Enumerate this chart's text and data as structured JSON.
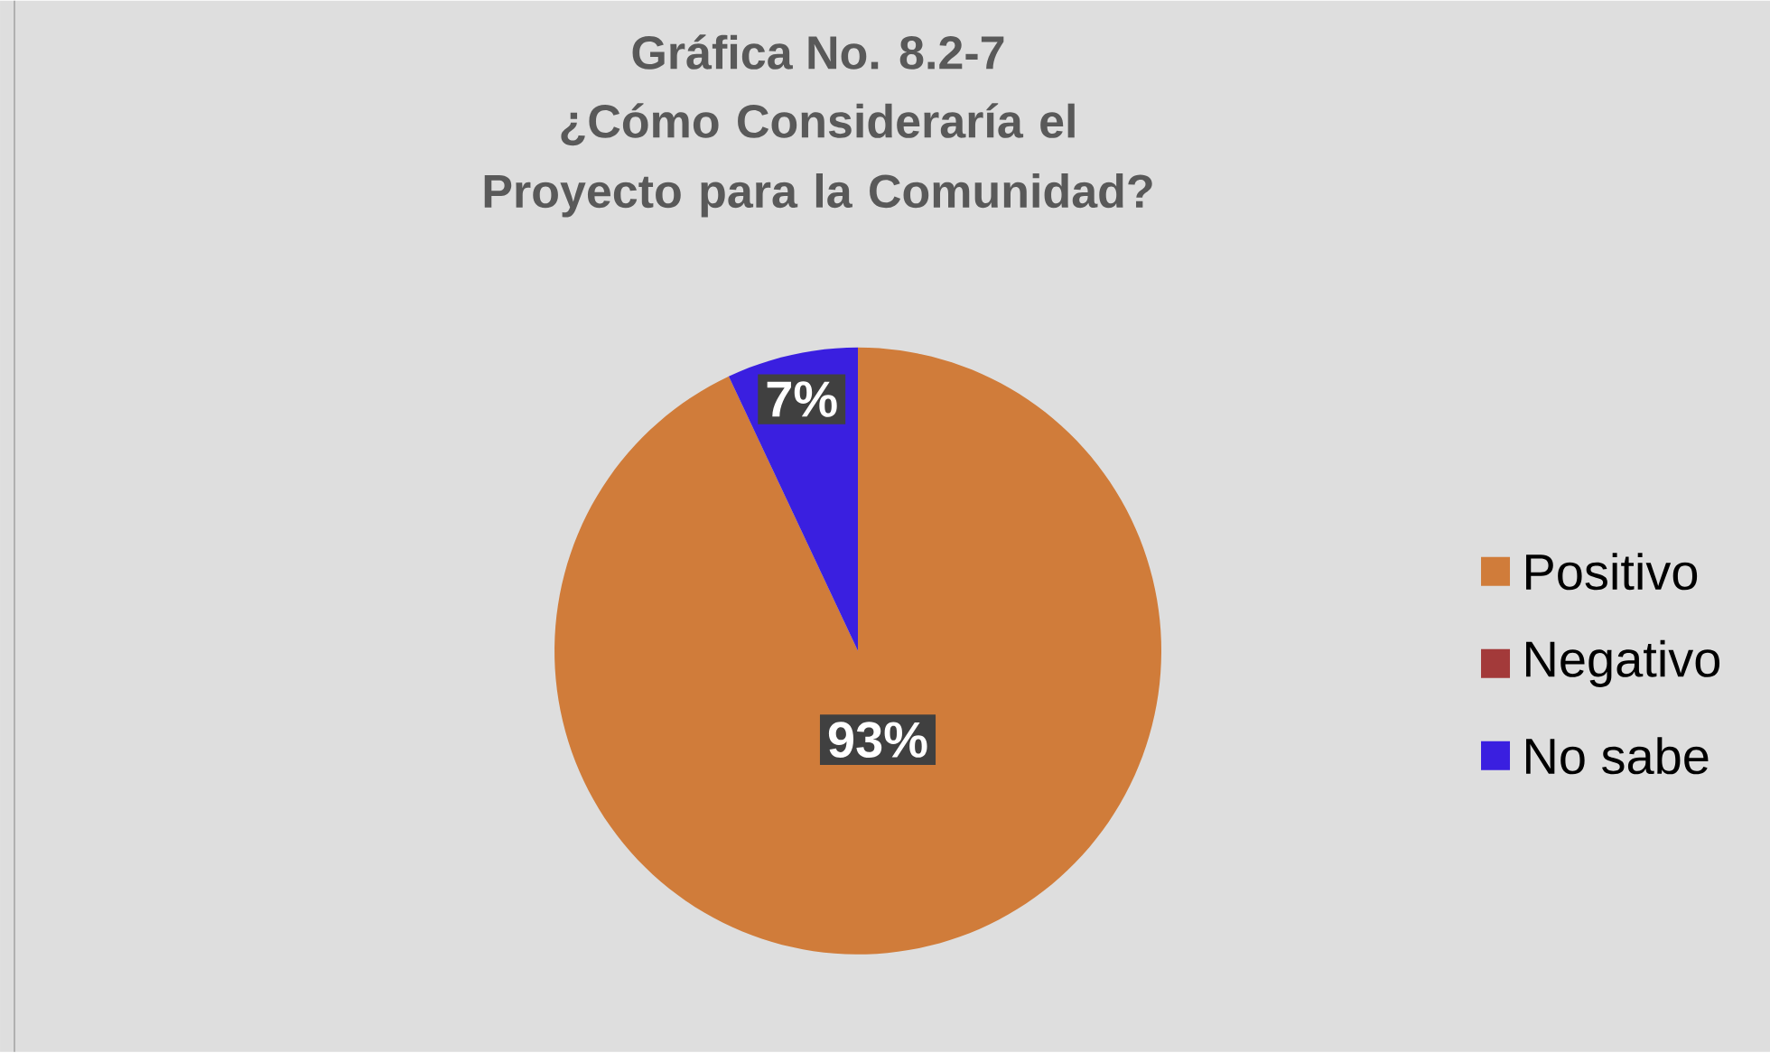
{
  "chart_data": {
    "type": "pie",
    "title": "Gráfica No. 8.2-7",
    "subtitle": "¿Cómo Consideraría el Proyecto para la Comunidad?",
    "categories": [
      "Positivo",
      "Negativo",
      "No sabe"
    ],
    "values": [
      93,
      0,
      7
    ],
    "colors": [
      "#d07c3a",
      "#a33a3a",
      "#3a1fe0"
    ],
    "value_labels": [
      "93%",
      null,
      "7%"
    ],
    "legend": "right"
  }
}
